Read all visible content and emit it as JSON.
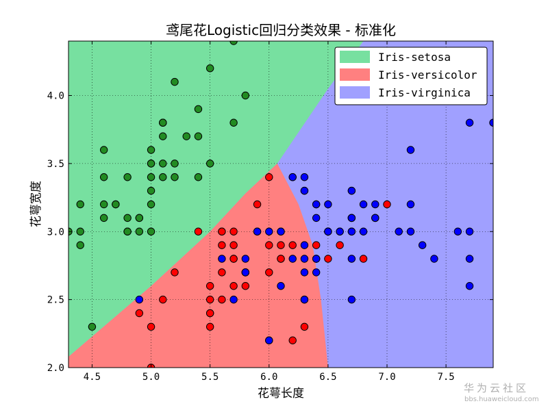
{
  "chart_data": {
    "type": "scatter",
    "title": "鸢尾花Logistic回归分类效果 - 标准化",
    "xlabel": "花萼长度",
    "ylabel": "花萼宽度",
    "xlim": [
      4.3,
      7.9
    ],
    "ylim": [
      2.0,
      4.4
    ],
    "xticks": [
      4.5,
      5.0,
      5.5,
      6.0,
      6.5,
      7.0,
      7.5
    ],
    "xtick_labels": [
      "4.5",
      "5.0",
      "5.5",
      "6.0",
      "6.5",
      "7.0",
      "7.5"
    ],
    "yticks": [
      2.0,
      2.5,
      3.0,
      3.5,
      4.0
    ],
    "ytick_labels": [
      "2.0",
      "2.5",
      "3.0",
      "3.5",
      "4.0"
    ],
    "grid": true,
    "legend_position": "top-right",
    "regions": [
      {
        "name": "Iris-setosa",
        "color": "#77e0a0"
      },
      {
        "name": "Iris-versicolor",
        "color": "#ff8080"
      },
      {
        "name": "Iris-virginica",
        "color": "#a0a0ff"
      }
    ],
    "boundaries": {
      "setosa_lower": [
        [
          4.3,
          2.08
        ],
        [
          5.0,
          2.6
        ],
        [
          5.5,
          3.0
        ],
        [
          5.8,
          3.28
        ],
        [
          6.07,
          3.5
        ]
      ],
      "setosa_virginica": [
        [
          6.07,
          3.5
        ],
        [
          6.5,
          4.05
        ],
        [
          6.8,
          4.4
        ]
      ],
      "versicolor_virginica": [
        [
          6.07,
          3.5
        ],
        [
          6.25,
          3.2
        ],
        [
          6.37,
          2.9
        ],
        [
          6.44,
          2.5
        ],
        [
          6.5,
          2.0
        ]
      ]
    },
    "series": [
      {
        "name": "Iris-setosa",
        "color": "#228b22",
        "points": [
          [
            5.1,
            3.5
          ],
          [
            4.9,
            3.0
          ],
          [
            4.7,
            3.2
          ],
          [
            4.6,
            3.1
          ],
          [
            5.0,
            3.6
          ],
          [
            5.4,
            3.9
          ],
          [
            4.6,
            3.4
          ],
          [
            5.0,
            3.4
          ],
          [
            4.4,
            2.9
          ],
          [
            4.9,
            3.1
          ],
          [
            5.4,
            3.7
          ],
          [
            4.8,
            3.4
          ],
          [
            4.8,
            3.0
          ],
          [
            4.3,
            3.0
          ],
          [
            5.8,
            4.0
          ],
          [
            5.7,
            4.4
          ],
          [
            5.1,
            3.8
          ],
          [
            5.7,
            3.8
          ],
          [
            5.1,
            3.7
          ],
          [
            4.6,
            3.6
          ],
          [
            5.2,
            3.5
          ],
          [
            5.2,
            3.4
          ],
          [
            4.7,
            3.2
          ],
          [
            4.8,
            3.1
          ],
          [
            5.5,
            4.2
          ],
          [
            4.9,
            3.1
          ],
          [
            5.0,
            3.2
          ],
          [
            5.5,
            3.5
          ],
          [
            4.4,
            3.0
          ],
          [
            5.1,
            3.4
          ],
          [
            5.0,
            3.5
          ],
          [
            4.5,
            2.3
          ],
          [
            4.4,
            3.2
          ],
          [
            5.0,
            3.5
          ],
          [
            5.1,
            3.8
          ],
          [
            4.8,
            3.0
          ],
          [
            5.1,
            3.8
          ],
          [
            4.6,
            3.2
          ],
          [
            5.3,
            3.7
          ],
          [
            5.0,
            3.3
          ],
          [
            5.4,
            3.4
          ],
          [
            5.2,
            4.1
          ],
          [
            5.0,
            3.0
          ]
        ]
      },
      {
        "name": "Iris-versicolor",
        "color": "#ff0000",
        "points": [
          [
            7.0,
            3.2
          ],
          [
            6.4,
            3.2
          ],
          [
            6.9,
            3.1
          ],
          [
            5.5,
            2.3
          ],
          [
            6.5,
            2.8
          ],
          [
            5.7,
            2.8
          ],
          [
            6.3,
            3.3
          ],
          [
            4.9,
            2.4
          ],
          [
            6.6,
            2.9
          ],
          [
            5.2,
            2.7
          ],
          [
            5.0,
            2.0
          ],
          [
            5.9,
            3.0
          ],
          [
            6.0,
            2.2
          ],
          [
            6.1,
            2.9
          ],
          [
            5.6,
            2.9
          ],
          [
            6.7,
            3.1
          ],
          [
            5.6,
            3.0
          ],
          [
            5.8,
            2.7
          ],
          [
            6.2,
            2.2
          ],
          [
            5.6,
            2.5
          ],
          [
            5.9,
            3.2
          ],
          [
            6.1,
            2.8
          ],
          [
            6.3,
            2.5
          ],
          [
            6.1,
            2.8
          ],
          [
            6.4,
            2.9
          ],
          [
            6.6,
            3.0
          ],
          [
            6.8,
            2.8
          ],
          [
            6.7,
            3.0
          ],
          [
            6.0,
            2.9
          ],
          [
            5.7,
            2.6
          ],
          [
            5.5,
            2.4
          ],
          [
            5.5,
            2.4
          ],
          [
            5.8,
            2.7
          ],
          [
            6.0,
            2.7
          ],
          [
            5.4,
            3.0
          ],
          [
            6.0,
            3.4
          ],
          [
            6.7,
            3.1
          ],
          [
            6.3,
            2.3
          ],
          [
            5.6,
            3.0
          ],
          [
            5.5,
            2.5
          ],
          [
            5.5,
            2.6
          ],
          [
            6.1,
            3.0
          ],
          [
            5.8,
            2.6
          ],
          [
            5.0,
            2.3
          ],
          [
            5.6,
            2.7
          ],
          [
            5.7,
            3.0
          ],
          [
            5.7,
            2.9
          ],
          [
            6.2,
            2.9
          ],
          [
            5.1,
            2.5
          ],
          [
            5.7,
            2.8
          ]
        ]
      },
      {
        "name": "Iris-virginica",
        "color": "#0000ff",
        "points": [
          [
            6.3,
            3.3
          ],
          [
            5.8,
            2.7
          ],
          [
            7.1,
            3.0
          ],
          [
            6.3,
            2.9
          ],
          [
            6.5,
            3.0
          ],
          [
            7.6,
            3.0
          ],
          [
            4.9,
            2.5
          ],
          [
            7.3,
            2.9
          ],
          [
            6.7,
            2.5
          ],
          [
            7.2,
            3.6
          ],
          [
            6.5,
            3.2
          ],
          [
            6.4,
            2.7
          ],
          [
            6.8,
            3.0
          ],
          [
            5.7,
            2.5
          ],
          [
            5.8,
            2.8
          ],
          [
            6.4,
            3.2
          ],
          [
            6.5,
            3.0
          ],
          [
            7.7,
            3.8
          ],
          [
            7.7,
            2.6
          ],
          [
            6.0,
            2.2
          ],
          [
            6.9,
            3.2
          ],
          [
            5.6,
            2.8
          ],
          [
            7.7,
            2.8
          ],
          [
            6.3,
            2.7
          ],
          [
            6.7,
            3.3
          ],
          [
            7.2,
            3.2
          ],
          [
            6.2,
            2.8
          ],
          [
            6.1,
            3.0
          ],
          [
            6.4,
            2.8
          ],
          [
            7.2,
            3.0
          ],
          [
            7.4,
            2.8
          ],
          [
            7.9,
            3.8
          ],
          [
            6.4,
            2.8
          ],
          [
            6.3,
            2.8
          ],
          [
            6.1,
            2.6
          ],
          [
            7.7,
            3.0
          ],
          [
            6.3,
            3.4
          ],
          [
            6.4,
            3.1
          ],
          [
            6.0,
            3.0
          ],
          [
            6.9,
            3.1
          ],
          [
            6.7,
            3.1
          ],
          [
            6.9,
            3.1
          ],
          [
            5.8,
            2.7
          ],
          [
            6.8,
            3.2
          ],
          [
            6.7,
            3.3
          ],
          [
            6.7,
            3.0
          ],
          [
            6.3,
            2.5
          ],
          [
            6.5,
            3.0
          ],
          [
            6.2,
            3.4
          ],
          [
            5.9,
            3.0
          ],
          [
            6.2,
            3.4
          ],
          [
            6.6,
            3.0
          ],
          [
            6.7,
            2.8
          ],
          [
            6.4,
            2.8
          ]
        ]
      }
    ],
    "legend": [
      "Iris-setosa",
      "Iris-versicolor",
      "Iris-virginica"
    ]
  },
  "watermark": {
    "text_cn": "华为云社区",
    "url": "bbs.huaweicloud.com"
  }
}
